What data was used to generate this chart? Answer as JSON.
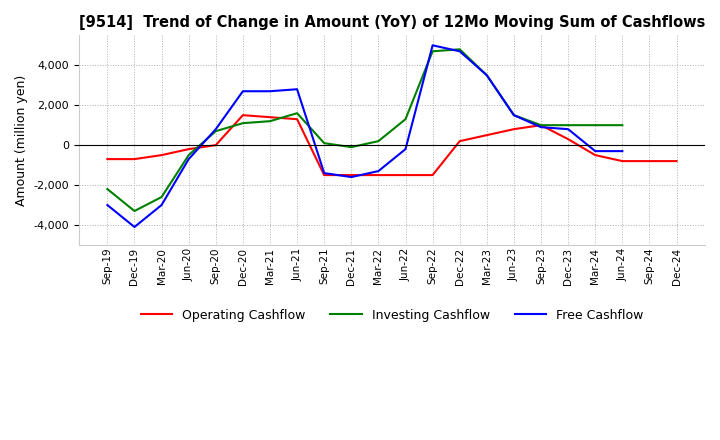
{
  "title": "[9514]  Trend of Change in Amount (YoY) of 12Mo Moving Sum of Cashflows",
  "ylabel": "Amount (million yen)",
  "x_labels": [
    "Sep-19",
    "Dec-19",
    "Mar-20",
    "Jun-20",
    "Sep-20",
    "Dec-20",
    "Mar-21",
    "Jun-21",
    "Sep-21",
    "Dec-21",
    "Mar-22",
    "Jun-22",
    "Sep-22",
    "Dec-22",
    "Mar-23",
    "Jun-23",
    "Sep-23",
    "Dec-23",
    "Mar-24",
    "Jun-24",
    "Sep-24",
    "Dec-24"
  ],
  "operating": [
    -700,
    -700,
    -500,
    -200,
    0,
    1500,
    1400,
    1300,
    -1500,
    -1500,
    -1500,
    -1500,
    -1500,
    200,
    500,
    800,
    1000,
    300,
    -500,
    -800,
    -800,
    -800
  ],
  "investing": [
    -2200,
    -3300,
    -2600,
    -500,
    700,
    1100,
    1200,
    1600,
    100,
    -100,
    200,
    1300,
    4700,
    4800,
    3500,
    1500,
    1000,
    1000,
    1000,
    1000,
    null,
    null
  ],
  "free": [
    -3000,
    -4100,
    -3000,
    -700,
    800,
    2700,
    2700,
    2800,
    -1400,
    -1600,
    -1300,
    -200,
    5000,
    4700,
    3500,
    1500,
    900,
    800,
    -300,
    -300,
    null,
    null
  ],
  "ylim": [
    -5000,
    5500
  ],
  "yticks": [
    -4000,
    -2000,
    0,
    2000,
    4000
  ],
  "operating_color": "#ff0000",
  "investing_color": "#008000",
  "free_color": "#0000ff",
  "grid_color": "#b0b0b0",
  "background_color": "#ffffff"
}
